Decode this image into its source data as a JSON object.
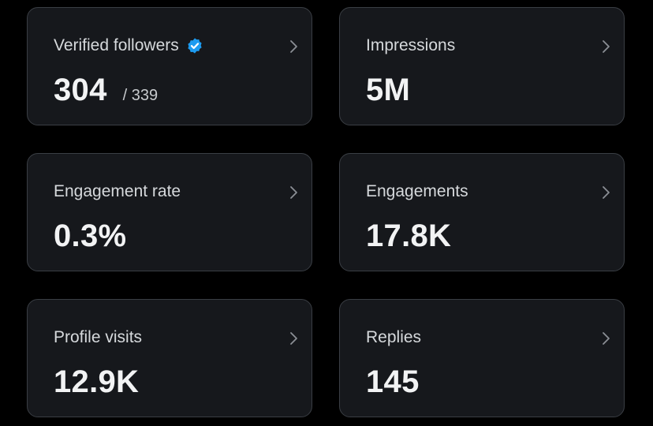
{
  "cards": [
    {
      "label": "Verified followers",
      "value": "304",
      "sub": "/ 339",
      "verified_icon": "verified-badge-icon",
      "badge_color": "#1d9bf0"
    },
    {
      "label": "Impressions",
      "value": "5M"
    },
    {
      "label": "Engagement rate",
      "value": "0.3%"
    },
    {
      "label": "Engagements",
      "value": "17.8K"
    },
    {
      "label": "Profile visits",
      "value": "12.9K"
    },
    {
      "label": "Replies",
      "value": "145"
    }
  ],
  "icons": {
    "chevron": "chevron-right-icon"
  },
  "colors": {
    "background": "#000000",
    "card": "#16181c",
    "border": "#3a3e44",
    "accent": "#1d9bf0"
  }
}
